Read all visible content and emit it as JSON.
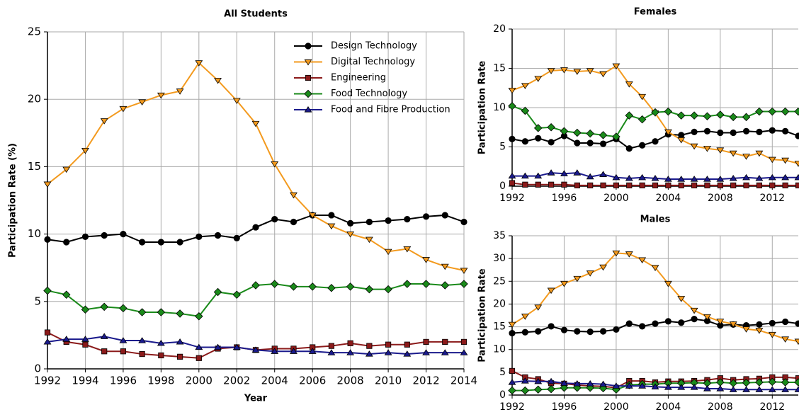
{
  "chart_data": [
    {
      "type": "line",
      "title": "All Students",
      "xlabel": "Year",
      "ylabel": "Participation Rate (%)",
      "x": [
        1992,
        1993,
        1994,
        1995,
        1996,
        1997,
        1998,
        1999,
        2000,
        2001,
        2002,
        2003,
        2004,
        2005,
        2006,
        2007,
        2008,
        2009,
        2010,
        2011,
        2012,
        2013,
        2014
      ],
      "xlim": [
        1992,
        2014
      ],
      "xticks": [
        1992,
        1994,
        1996,
        1998,
        2000,
        2002,
        2004,
        2006,
        2008,
        2010,
        2012,
        2014
      ],
      "ylim": [
        0,
        25
      ],
      "yticks": [
        0,
        5,
        10,
        15,
        20,
        25
      ],
      "grid": true,
      "legend": "upper right",
      "series": [
        {
          "name": "Design Technology",
          "color": "#000000",
          "marker": "circle",
          "values": [
            9.6,
            9.4,
            9.8,
            9.9,
            10.0,
            9.4,
            9.4,
            9.4,
            9.8,
            9.9,
            9.7,
            10.5,
            11.1,
            10.9,
            11.4,
            11.4,
            10.8,
            10.9,
            11.0,
            11.1,
            11.3,
            11.4,
            10.9
          ]
        },
        {
          "name": "Digital Technology",
          "color": "#f39a1e",
          "marker": "triangle-down",
          "values": [
            13.7,
            14.8,
            16.2,
            18.4,
            19.3,
            19.8,
            20.3,
            20.6,
            22.7,
            21.4,
            19.9,
            18.2,
            15.2,
            12.9,
            11.4,
            10.6,
            10.0,
            9.6,
            8.7,
            8.9,
            8.1,
            7.6,
            7.3
          ]
        },
        {
          "name": "Engineering",
          "color": "#8b1a1a",
          "marker": "square",
          "values": [
            2.7,
            2.0,
            1.8,
            1.3,
            1.3,
            1.1,
            1.0,
            0.9,
            0.8,
            1.5,
            1.6,
            1.4,
            1.5,
            1.5,
            1.6,
            1.7,
            1.9,
            1.7,
            1.8,
            1.8,
            2.0,
            2.0,
            2.0
          ]
        },
        {
          "name": "Food Technology",
          "color": "#1a8a1a",
          "marker": "diamond",
          "values": [
            5.8,
            5.5,
            4.4,
            4.6,
            4.5,
            4.2,
            4.2,
            4.1,
            3.9,
            5.7,
            5.5,
            6.2,
            6.3,
            6.1,
            6.1,
            6.0,
            6.1,
            5.9,
            5.9,
            6.3,
            6.3,
            6.2,
            6.3
          ]
        },
        {
          "name": "Food and Fibre Production",
          "color": "#1a1a8c",
          "marker": "triangle-up",
          "values": [
            2.0,
            2.2,
            2.2,
            2.4,
            2.1,
            2.1,
            1.9,
            2.0,
            1.6,
            1.6,
            1.6,
            1.4,
            1.3,
            1.3,
            1.3,
            1.2,
            1.2,
            1.1,
            1.2,
            1.1,
            1.2,
            1.2,
            1.2
          ]
        }
      ]
    },
    {
      "type": "line",
      "title": "Females",
      "ylabel": "Participation Rate",
      "x": [
        1992,
        1993,
        1994,
        1995,
        1996,
        1997,
        1998,
        1999,
        2000,
        2001,
        2002,
        2003,
        2004,
        2005,
        2006,
        2007,
        2008,
        2009,
        2010,
        2011,
        2012,
        2013,
        2014
      ],
      "xlim": [
        1992,
        2014
      ],
      "xticks": [
        1992,
        1996,
        2000,
        2004,
        2008,
        2012
      ],
      "ylim": [
        0,
        20
      ],
      "yticks": [
        0,
        5,
        10,
        15,
        20
      ],
      "grid": true,
      "series": [
        {
          "color": "#000000",
          "marker": "circle",
          "values": [
            6.0,
            5.7,
            6.1,
            5.6,
            6.4,
            5.5,
            5.5,
            5.4,
            6.0,
            4.8,
            5.2,
            5.7,
            6.6,
            6.5,
            6.9,
            7.0,
            6.8,
            6.8,
            7.0,
            6.9,
            7.1,
            7.0,
            6.4
          ]
        },
        {
          "color": "#f39a1e",
          "marker": "triangle-down",
          "values": [
            12.2,
            12.8,
            13.7,
            14.7,
            14.8,
            14.6,
            14.7,
            14.3,
            15.3,
            13.0,
            11.4,
            9.3,
            6.9,
            5.9,
            5.1,
            4.8,
            4.6,
            4.2,
            3.8,
            4.2,
            3.4,
            3.3,
            2.9
          ]
        },
        {
          "color": "#8b1a1a",
          "marker": "square",
          "values": [
            0.4,
            0.2,
            0.2,
            0.2,
            0.2,
            0.1,
            0.1,
            0.1,
            0.1,
            0.1,
            0.1,
            0.1,
            0.1,
            0.1,
            0.1,
            0.1,
            0.1,
            0.1,
            0.1,
            0.1,
            0.1,
            0.1,
            0.1
          ]
        },
        {
          "color": "#1a8a1a",
          "marker": "diamond",
          "values": [
            10.2,
            9.6,
            7.4,
            7.5,
            7.0,
            6.8,
            6.7,
            6.5,
            6.3,
            9.0,
            8.5,
            9.4,
            9.5,
            9.0,
            9.0,
            8.9,
            9.1,
            8.8,
            8.8,
            9.5,
            9.5,
            9.5,
            9.5
          ]
        },
        {
          "color": "#1a1a8c",
          "marker": "triangle-up",
          "values": [
            1.3,
            1.3,
            1.3,
            1.7,
            1.6,
            1.7,
            1.2,
            1.5,
            1.1,
            1.0,
            1.1,
            1.0,
            0.9,
            0.9,
            0.9,
            0.9,
            0.9,
            1.0,
            1.1,
            1.0,
            1.1,
            1.1,
            1.1
          ]
        }
      ]
    },
    {
      "type": "line",
      "title": "Males",
      "ylabel": "Participation Rate",
      "x": [
        1992,
        1993,
        1994,
        1995,
        1996,
        1997,
        1998,
        1999,
        2000,
        2001,
        2002,
        2003,
        2004,
        2005,
        2006,
        2007,
        2008,
        2009,
        2010,
        2011,
        2012,
        2013,
        2014
      ],
      "xlim": [
        1992,
        2014
      ],
      "xticks": [
        1992,
        1996,
        2000,
        2004,
        2008,
        2012
      ],
      "ylim": [
        0,
        35
      ],
      "yticks": [
        0,
        5,
        10,
        15,
        20,
        25,
        30,
        35
      ],
      "grid": true,
      "series": [
        {
          "color": "#000000",
          "marker": "circle",
          "values": [
            13.6,
            13.8,
            14.0,
            15.1,
            14.3,
            14.0,
            13.9,
            14.0,
            14.4,
            15.7,
            15.1,
            15.7,
            16.2,
            15.9,
            16.7,
            16.3,
            15.3,
            15.5,
            15.3,
            15.5,
            15.8,
            16.1,
            15.7
          ]
        },
        {
          "color": "#f39a1e",
          "marker": "triangle-down",
          "values": [
            15.5,
            17.3,
            19.3,
            23.0,
            24.5,
            25.6,
            26.8,
            28.1,
            31.2,
            31.0,
            29.7,
            28.0,
            24.5,
            21.2,
            18.6,
            17.2,
            16.2,
            15.6,
            14.5,
            14.2,
            13.3,
            12.3,
            11.8
          ]
        },
        {
          "color": "#8b1a1a",
          "marker": "square",
          "values": [
            5.3,
            3.9,
            3.5,
            2.6,
            2.5,
            2.2,
            2.0,
            1.9,
            1.6,
            3.1,
            3.1,
            2.8,
            3.0,
            3.0,
            3.1,
            3.3,
            3.7,
            3.3,
            3.5,
            3.6,
            3.9,
            3.9,
            3.7
          ]
        },
        {
          "color": "#1a8a1a",
          "marker": "diamond",
          "values": [
            1.0,
            1.0,
            1.2,
            1.3,
            1.6,
            1.6,
            1.6,
            1.5,
            1.2,
            2.2,
            2.4,
            2.4,
            2.6,
            2.6,
            2.7,
            2.6,
            2.8,
            2.6,
            2.7,
            2.8,
            2.9,
            2.8,
            2.8
          ]
        },
        {
          "color": "#1a1a8c",
          "marker": "triangle-up",
          "values": [
            2.8,
            3.1,
            3.0,
            3.0,
            2.6,
            2.5,
            2.5,
            2.4,
            2.0,
            2.0,
            2.0,
            1.8,
            1.7,
            1.7,
            1.7,
            1.4,
            1.4,
            1.2,
            1.2,
            1.2,
            1.2,
            1.2,
            1.2
          ]
        }
      ]
    }
  ]
}
